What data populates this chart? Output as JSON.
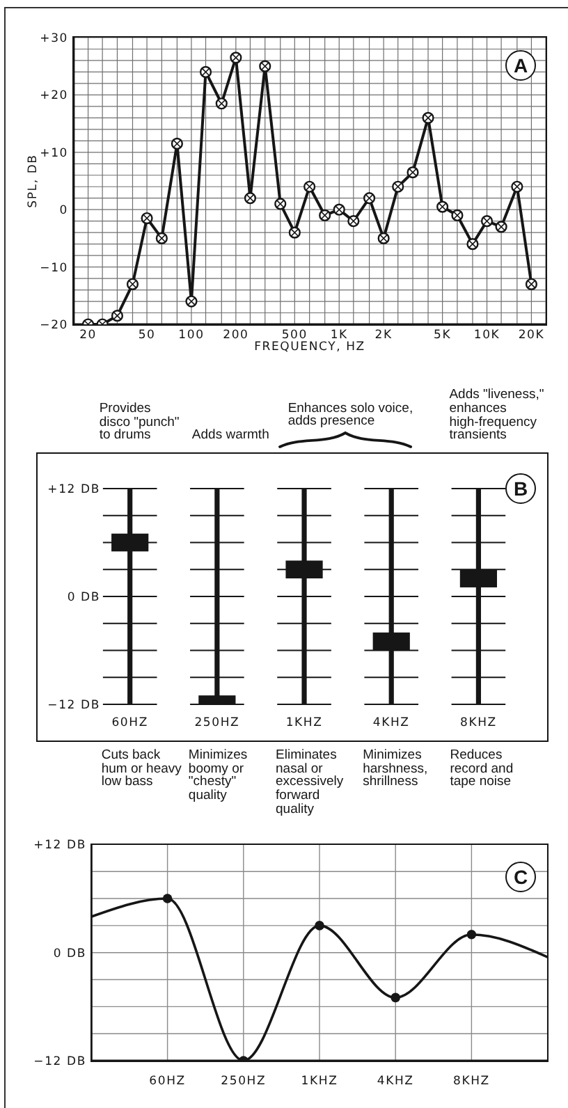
{
  "chart_data": [
    {
      "type": "line",
      "title": "A",
      "xlabel": "FREQUENCY, HZ",
      "ylabel": "SPL, DB",
      "x": [
        20,
        25,
        31.5,
        40,
        50,
        63,
        80,
        100,
        125,
        160,
        200,
        250,
        315,
        400,
        500,
        630,
        800,
        1000,
        1250,
        1600,
        2000,
        2500,
        3150,
        4000,
        5000,
        6300,
        8000,
        10000,
        12500,
        16000,
        20000
      ],
      "values": [
        -20,
        -20,
        -18.5,
        -13,
        -1.5,
        -5,
        11.5,
        -16,
        24,
        18.5,
        26.5,
        2,
        25,
        1,
        -4,
        4,
        -1,
        0,
        -2,
        2,
        -5,
        4,
        6.5,
        16,
        0.5,
        -1,
        -6,
        -2,
        -3,
        4,
        -13
      ],
      "color": "#161616",
      "marker": "circle",
      "log": "x",
      "xlim": [
        16,
        25000
      ],
      "xticks": [
        20,
        {
          "value": 25,
          "label": null
        },
        {
          "value": 31.5,
          "label": null
        },
        {
          "value": 40,
          "label": null
        },
        50,
        {
          "value": 63,
          "label": null
        },
        {
          "value": 80,
          "label": null
        },
        100,
        {
          "value": 125,
          "label": null
        },
        {
          "value": 160,
          "label": null
        },
        200,
        {
          "value": 250,
          "label": null
        },
        {
          "value": 315,
          "label": null
        },
        {
          "value": 400,
          "label": null
        },
        500,
        {
          "value": 630,
          "label": null
        },
        {
          "value": 800,
          "label": null
        },
        {
          "value": 1000,
          "label": "1K"
        },
        {
          "value": 1250,
          "label": null
        },
        {
          "value": 1600,
          "label": null
        },
        {
          "value": 2000,
          "label": "2K"
        },
        {
          "value": 2500,
          "label": null
        },
        {
          "value": 3150,
          "label": null
        },
        {
          "value": 4000,
          "label": null
        },
        {
          "value": 5000,
          "label": "5K"
        },
        {
          "value": 6300,
          "label": null
        },
        {
          "value": 8000,
          "label": null
        },
        {
          "value": 10000,
          "label": "10K"
        },
        {
          "value": 12500,
          "label": null
        },
        {
          "value": 16000,
          "label": null
        },
        {
          "value": 20000,
          "label": "20K"
        }
      ],
      "ylim": [
        -20,
        30
      ],
      "yticks": [
        {
          "value": -20,
          "label": "−20"
        },
        {
          "value": -18,
          "label": null
        },
        {
          "value": -16,
          "label": null
        },
        {
          "value": -14,
          "label": null
        },
        {
          "value": -12,
          "label": null
        },
        {
          "value": -10,
          "label": "−10"
        },
        {
          "value": -8,
          "label": null
        },
        {
          "value": -6,
          "label": null
        },
        {
          "value": -4,
          "label": null
        },
        {
          "value": -2,
          "label": null
        },
        0,
        {
          "value": 2,
          "label": null
        },
        {
          "value": 4,
          "label": null
        },
        {
          "value": 6,
          "label": null
        },
        {
          "value": 8,
          "label": null
        },
        {
          "value": 10,
          "label": "+10"
        },
        {
          "value": 12,
          "label": null
        },
        {
          "value": 14,
          "label": null
        },
        {
          "value": 16,
          "label": null
        },
        {
          "value": 18,
          "label": null
        },
        {
          "value": 20,
          "label": "+20"
        },
        {
          "value": 22,
          "label": null
        },
        {
          "value": 24,
          "label": null
        },
        {
          "value": 26,
          "label": null
        },
        {
          "value": 28,
          "label": null
        },
        {
          "value": 30,
          "label": "+30"
        }
      ],
      "grid": true
    },
    {
      "type": "scatter",
      "title": "B",
      "categories": [
        "60HZ",
        "250HZ",
        "1KHZ",
        "4KHZ",
        "8KHZ"
      ],
      "values": [
        6,
        -12,
        3,
        -5,
        2
      ],
      "color": "#161616",
      "marker": "square",
      "ylim": [
        -12,
        12
      ],
      "yticks": [
        {
          "value": -12,
          "label": "−12 DB"
        },
        {
          "value": -9,
          "label": null
        },
        {
          "value": -6,
          "label": null
        },
        {
          "value": -3,
          "label": null
        },
        {
          "value": 0,
          "label": "0 DB"
        },
        {
          "value": 3,
          "label": null
        },
        {
          "value": 6,
          "label": null
        },
        {
          "value": 9,
          "label": null
        },
        {
          "value": 12,
          "label": "+12 DB"
        }
      ],
      "grid": true,
      "annotations": [
        "Provides disco \"punch\" to drums",
        "Adds warmth",
        "Enhances solo voice, adds presence",
        "Adds \"liveness,\" enhances high-frequency transients",
        "Cuts back hum or heavy low bass",
        "Minimizes boomy or \"chesty\" quality",
        "Eliminates nasal or excessively forward quality",
        "Minimizes harshness, shrillness",
        "Reduces record and tape noise"
      ]
    },
    {
      "type": "line",
      "title": "C",
      "categories": [
        null,
        "60HZ",
        "250HZ",
        "1KHZ",
        "4KHZ",
        "8KHZ",
        null
      ],
      "values": [
        4,
        6,
        -12,
        3,
        -5,
        2,
        -0.5
      ],
      "color": "#161616",
      "marker": "circle",
      "ylim": [
        -12,
        12
      ],
      "yticks": [
        {
          "value": -12,
          "label": "−12 DB"
        },
        {
          "value": -9,
          "label": null
        },
        {
          "value": -6,
          "label": null
        },
        {
          "value": -3,
          "label": null
        },
        {
          "value": 0,
          "label": "0 DB"
        },
        {
          "value": 3,
          "label": null
        },
        {
          "value": 6,
          "label": null
        },
        {
          "value": 9,
          "label": null
        },
        {
          "value": 12,
          "label": "+12 DB"
        }
      ],
      "grid": true
    }
  ]
}
